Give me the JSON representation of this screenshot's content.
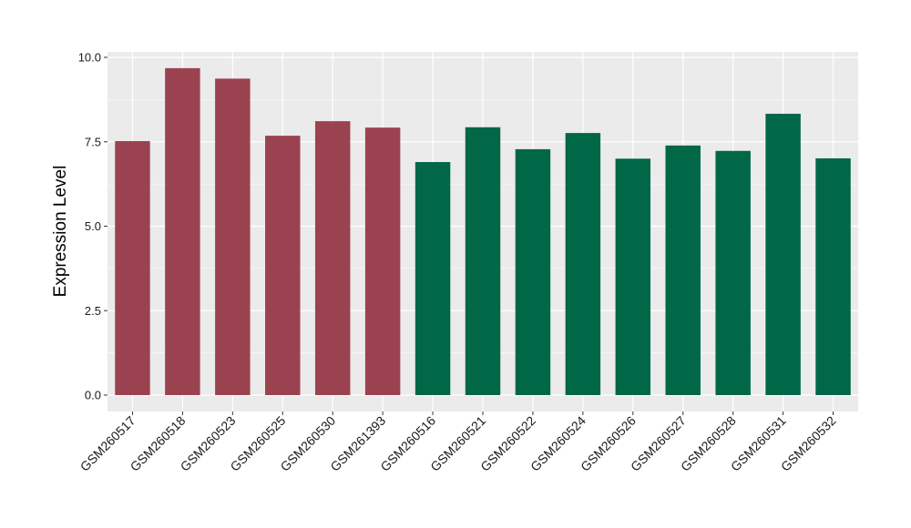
{
  "chart_data": {
    "type": "bar",
    "title": "",
    "xlabel": "",
    "ylabel": "Expression Level",
    "ylim": [
      0,
      10.0
    ],
    "yticks": [
      "0.0",
      "2.5",
      "5.0",
      "7.5",
      "10.0"
    ],
    "grid": true,
    "categories": [
      "GSM260517",
      "GSM260518",
      "GSM260523",
      "GSM260525",
      "GSM260530",
      "GSM261393",
      "GSM260516",
      "GSM260521",
      "GSM260522",
      "GSM260524",
      "GSM260526",
      "GSM260527",
      "GSM260528",
      "GSM260531",
      "GSM260532"
    ],
    "values": [
      7.52,
      9.68,
      9.37,
      7.68,
      8.11,
      7.92,
      6.9,
      7.93,
      7.28,
      7.76,
      7.0,
      7.39,
      7.23,
      8.33,
      7.01
    ],
    "bar_colors": [
      "#9b4250",
      "#9b4250",
      "#9b4250",
      "#9b4250",
      "#9b4250",
      "#9b4250",
      "#006747",
      "#006747",
      "#006747",
      "#006747",
      "#006747",
      "#006747",
      "#006747",
      "#006747",
      "#006747"
    ],
    "panel_background": "#ebebeb",
    "grid_color": "#ffffff"
  }
}
